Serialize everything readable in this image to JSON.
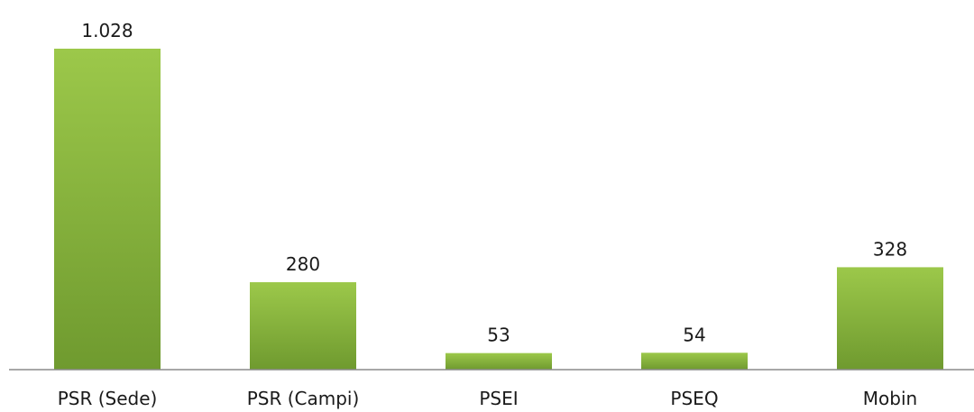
{
  "chart_data": {
    "type": "bar",
    "categories": [
      "PSR (Sede)",
      "PSR (Campi)",
      "PSEI",
      "PSEQ",
      "Mobin"
    ],
    "values": [
      1028,
      280,
      53,
      54,
      328
    ],
    "value_labels": [
      "1.028",
      "280",
      "53",
      "54",
      "328"
    ],
    "title": "",
    "xlabel": "",
    "ylabel": "",
    "ylim": [
      0,
      1028
    ],
    "grid": false,
    "legend": "none",
    "colors": {
      "bar_top": "#9cc84a",
      "bar_bottom": "#6f9a2f",
      "axis": "#8a8a8a"
    }
  }
}
